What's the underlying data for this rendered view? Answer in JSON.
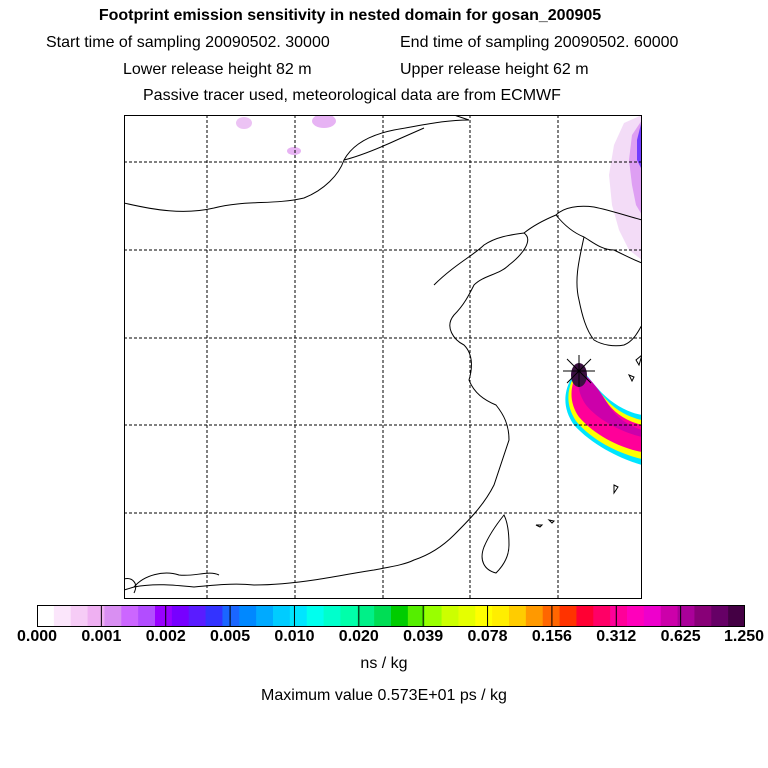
{
  "header": {
    "title": "Footprint emission sensitivity in nested domain for gosan_200905",
    "start_label": "Start time of sampling 20090502. 30000",
    "end_label": "End time of sampling 20090502. 60000",
    "lower_label": "Lower release height   82 m",
    "upper_label": "Upper release height   62 m",
    "tracer_note": "Passive tracer used, meteorological data are from ECMWF"
  },
  "colorbar": {
    "ticks": [
      "0.000",
      "0.001",
      "0.002",
      "0.005",
      "0.010",
      "0.020",
      "0.039",
      "0.078",
      "0.156",
      "0.312",
      "0.625",
      "1.250"
    ],
    "colors": [
      "#ffffff",
      "#fbe6fb",
      "#f6ccf6",
      "#efb0f2",
      "#d98ff2",
      "#cc66ff",
      "#b24dff",
      "#9900ff",
      "#7700ff",
      "#5a1cff",
      "#3333ff",
      "#1a66ff",
      "#0088ff",
      "#00aaff",
      "#00ccff",
      "#00e5ff",
      "#00ffee",
      "#00ffcc",
      "#00ffaa",
      "#00f088",
      "#00dd55",
      "#00cc00",
      "#55ee00",
      "#99ff00",
      "#ccff00",
      "#e5ff00",
      "#ffff00",
      "#ffee00",
      "#ffcc00",
      "#ff9900",
      "#ff6600",
      "#ff3300",
      "#ff0033",
      "#ff0066",
      "#ff0099",
      "#ff00bb",
      "#ee00cc",
      "#cc00aa",
      "#aa0099",
      "#880077",
      "#660066",
      "#440044"
    ],
    "unit": "ns / kg"
  },
  "max_value": "Maximum value  0.573E+01 ps / kg",
  "colors": {
    "plume_core": "#3a1040",
    "plume_high": "#ff0099",
    "plume_mid": "#ffcc00",
    "plume_low": "#00e5ff"
  }
}
